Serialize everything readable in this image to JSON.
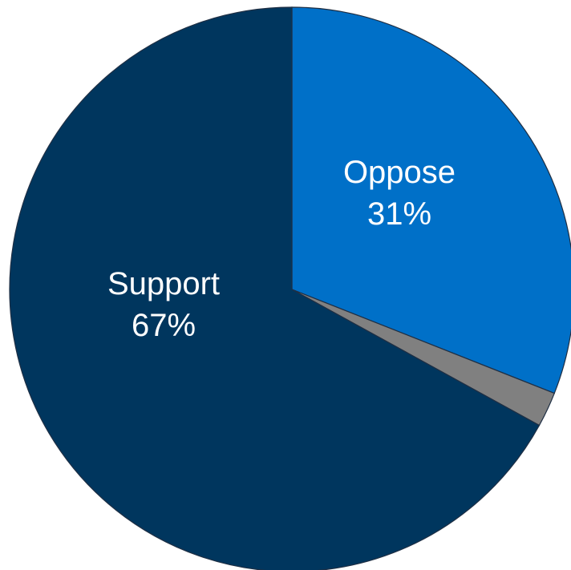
{
  "chart_data": {
    "type": "pie",
    "title": "",
    "slices": [
      {
        "label": "Oppose",
        "value_label": "31%",
        "value": 31,
        "color": "#0070c8"
      },
      {
        "label": "",
        "value_label": "",
        "value": 2,
        "color": "#808080"
      },
      {
        "label": "Support",
        "value_label": "67%",
        "value": 67,
        "color": "#00365e"
      }
    ],
    "start_angle_deg": 0,
    "direction": "clockwise",
    "legend": "none"
  }
}
